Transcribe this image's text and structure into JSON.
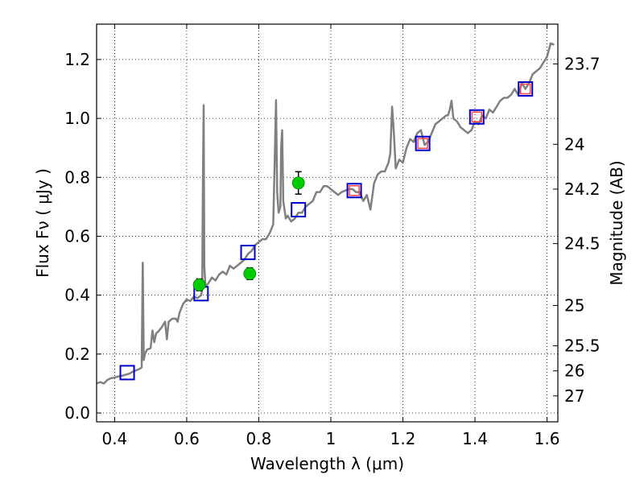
{
  "chart_data": {
    "type": "line",
    "title": "",
    "xlabel": "Wavelength  λ (μm)",
    "ylabel": "Flux  Fν  ( μJy )",
    "ylabel_right": "Magnitude (AB)",
    "xlim": [
      0.35,
      1.63
    ],
    "ylim": [
      -0.03,
      1.32
    ],
    "grid": true,
    "x_ticks": [
      {
        "value": 0.4,
        "label": "0.4"
      },
      {
        "value": 0.6,
        "label": "0.6"
      },
      {
        "value": 0.8,
        "label": "0.8"
      },
      {
        "value": 1.0,
        "label": "1"
      },
      {
        "value": 1.2,
        "label": "1.2"
      },
      {
        "value": 1.4,
        "label": "1.4"
      },
      {
        "value": 1.6,
        "label": "1.6"
      }
    ],
    "y_ticks": [
      {
        "value": 0.0,
        "label": "0.0"
      },
      {
        "value": 0.2,
        "label": "0.2"
      },
      {
        "value": 0.4,
        "label": "0.4"
      },
      {
        "value": 0.6,
        "label": "0.6"
      },
      {
        "value": 0.8,
        "label": "0.8"
      },
      {
        "value": 1.0,
        "label": "1.0"
      },
      {
        "value": 1.2,
        "label": "1.2"
      }
    ],
    "right_ticks": [
      {
        "flux": 1.185,
        "label": "23.7"
      },
      {
        "flux": 0.912,
        "label": "24"
      },
      {
        "flux": 0.76,
        "label": "24.2"
      },
      {
        "flux": 0.575,
        "label": "24.5"
      },
      {
        "flux": 0.365,
        "label": "25"
      },
      {
        "flux": 0.228,
        "label": "25.5"
      },
      {
        "flux": 0.143,
        "label": "26"
      },
      {
        "flux": 0.058,
        "label": "27"
      }
    ],
    "series": [
      {
        "kind": "line",
        "color": "#808080",
        "points": [
          [
            0.35,
            0.1
          ],
          [
            0.36,
            0.105
          ],
          [
            0.37,
            0.1
          ],
          [
            0.38,
            0.112
          ],
          [
            0.39,
            0.118
          ],
          [
            0.4,
            0.12
          ],
          [
            0.41,
            0.124
          ],
          [
            0.42,
            0.126
          ],
          [
            0.43,
            0.13
          ],
          [
            0.44,
            0.133
          ],
          [
            0.45,
            0.14
          ],
          [
            0.46,
            0.145
          ],
          [
            0.47,
            0.15
          ],
          [
            0.475,
            0.155
          ],
          [
            0.478,
            0.51
          ],
          [
            0.481,
            0.18
          ],
          [
            0.484,
            0.2
          ],
          [
            0.49,
            0.215
          ],
          [
            0.5,
            0.22
          ],
          [
            0.505,
            0.28
          ],
          [
            0.51,
            0.24
          ],
          [
            0.515,
            0.27
          ],
          [
            0.52,
            0.275
          ],
          [
            0.53,
            0.29
          ],
          [
            0.54,
            0.31
          ],
          [
            0.545,
            0.25
          ],
          [
            0.55,
            0.31
          ],
          [
            0.56,
            0.32
          ],
          [
            0.57,
            0.32
          ],
          [
            0.575,
            0.31
          ],
          [
            0.58,
            0.34
          ],
          [
            0.59,
            0.37
          ],
          [
            0.6,
            0.385
          ],
          [
            0.61,
            0.38
          ],
          [
            0.62,
            0.395
          ],
          [
            0.63,
            0.39
          ],
          [
            0.64,
            0.4
          ],
          [
            0.643,
            0.42
          ],
          [
            0.645,
            0.8
          ],
          [
            0.647,
            1.045
          ],
          [
            0.649,
            0.5
          ],
          [
            0.652,
            0.43
          ],
          [
            0.66,
            0.44
          ],
          [
            0.67,
            0.46
          ],
          [
            0.68,
            0.45
          ],
          [
            0.69,
            0.47
          ],
          [
            0.7,
            0.48
          ],
          [
            0.71,
            0.47
          ],
          [
            0.72,
            0.5
          ],
          [
            0.73,
            0.49
          ],
          [
            0.74,
            0.5
          ],
          [
            0.75,
            0.51
          ],
          [
            0.76,
            0.52
          ],
          [
            0.77,
            0.54
          ],
          [
            0.78,
            0.55
          ],
          [
            0.79,
            0.57
          ],
          [
            0.8,
            0.58
          ],
          [
            0.81,
            0.59
          ],
          [
            0.82,
            0.59
          ],
          [
            0.83,
            0.61
          ],
          [
            0.84,
            0.64
          ],
          [
            0.845,
            0.9
          ],
          [
            0.848,
            1.062
          ],
          [
            0.851,
            0.75
          ],
          [
            0.855,
            0.68
          ],
          [
            0.86,
            0.7
          ],
          [
            0.862,
            0.9
          ],
          [
            0.865,
            0.96
          ],
          [
            0.868,
            0.72
          ],
          [
            0.875,
            0.66
          ],
          [
            0.88,
            0.67
          ],
          [
            0.89,
            0.65
          ],
          [
            0.9,
            0.66
          ],
          [
            0.91,
            0.68
          ],
          [
            0.92,
            0.68
          ],
          [
            0.93,
            0.7
          ],
          [
            0.94,
            0.71
          ],
          [
            0.95,
            0.72
          ],
          [
            0.96,
            0.75
          ],
          [
            0.97,
            0.75
          ],
          [
            0.98,
            0.77
          ],
          [
            0.99,
            0.77
          ],
          [
            1.0,
            0.76
          ],
          [
            1.01,
            0.75
          ],
          [
            1.02,
            0.74
          ],
          [
            1.03,
            0.75
          ],
          [
            1.04,
            0.755
          ],
          [
            1.05,
            0.76
          ],
          [
            1.06,
            0.76
          ],
          [
            1.07,
            0.75
          ],
          [
            1.08,
            0.75
          ],
          [
            1.09,
            0.72
          ],
          [
            1.1,
            0.74
          ],
          [
            1.11,
            0.69
          ],
          [
            1.12,
            0.78
          ],
          [
            1.13,
            0.81
          ],
          [
            1.14,
            0.82
          ],
          [
            1.15,
            0.82
          ],
          [
            1.16,
            0.85
          ],
          [
            1.165,
            0.88
          ],
          [
            1.17,
            1.04
          ],
          [
            1.175,
            0.95
          ],
          [
            1.18,
            0.83
          ],
          [
            1.19,
            0.86
          ],
          [
            1.2,
            0.85
          ],
          [
            1.21,
            0.9
          ],
          [
            1.22,
            0.93
          ],
          [
            1.23,
            0.92
          ],
          [
            1.24,
            0.95
          ],
          [
            1.25,
            0.96
          ],
          [
            1.26,
            0.91
          ],
          [
            1.27,
            0.92
          ],
          [
            1.28,
            0.95
          ],
          [
            1.29,
            0.98
          ],
          [
            1.3,
            0.99
          ],
          [
            1.31,
            1.0
          ],
          [
            1.32,
            1.01
          ],
          [
            1.325,
            1.01
          ],
          [
            1.33,
            1.03
          ],
          [
            1.335,
            1.06
          ],
          [
            1.34,
            1.0
          ],
          [
            1.35,
            0.99
          ],
          [
            1.36,
            0.97
          ],
          [
            1.37,
            0.96
          ],
          [
            1.38,
            0.95
          ],
          [
            1.39,
            0.96
          ],
          [
            1.4,
            0.99
          ],
          [
            1.41,
            0.98
          ],
          [
            1.42,
            1.01
          ],
          [
            1.43,
            1.0
          ],
          [
            1.44,
            1.03
          ],
          [
            1.45,
            1.02
          ],
          [
            1.46,
            1.04
          ],
          [
            1.47,
            1.06
          ],
          [
            1.48,
            1.07
          ],
          [
            1.49,
            1.07
          ],
          [
            1.5,
            1.08
          ],
          [
            1.51,
            1.1
          ],
          [
            1.52,
            1.08
          ],
          [
            1.53,
            1.12
          ],
          [
            1.54,
            1.1
          ],
          [
            1.55,
            1.12
          ],
          [
            1.56,
            1.15
          ],
          [
            1.57,
            1.16
          ],
          [
            1.58,
            1.17
          ],
          [
            1.59,
            1.19
          ],
          [
            1.6,
            1.21
          ],
          [
            1.61,
            1.255
          ],
          [
            1.62,
            1.25
          ]
        ]
      },
      {
        "kind": "open-square",
        "color": "#0000cc",
        "points": [
          [
            0.435,
            0.137
          ],
          [
            0.64,
            0.405
          ],
          [
            0.77,
            0.545
          ],
          [
            0.91,
            0.69
          ],
          [
            1.065,
            0.755
          ],
          [
            1.255,
            0.915
          ],
          [
            1.405,
            1.005
          ],
          [
            1.54,
            1.1
          ]
        ]
      },
      {
        "kind": "open-square-small",
        "color": "#ff4444",
        "points": [
          [
            1.065,
            0.755
          ],
          [
            1.255,
            0.915
          ],
          [
            1.405,
            1.005
          ],
          [
            1.54,
            1.1
          ]
        ]
      },
      {
        "kind": "filled-circle",
        "color": "#00cc00",
        "points": [
          [
            0.635,
            0.435,
            0.02
          ],
          [
            0.775,
            0.473,
            0.02
          ],
          [
            0.91,
            0.781,
            0.038
          ]
        ]
      }
    ]
  }
}
